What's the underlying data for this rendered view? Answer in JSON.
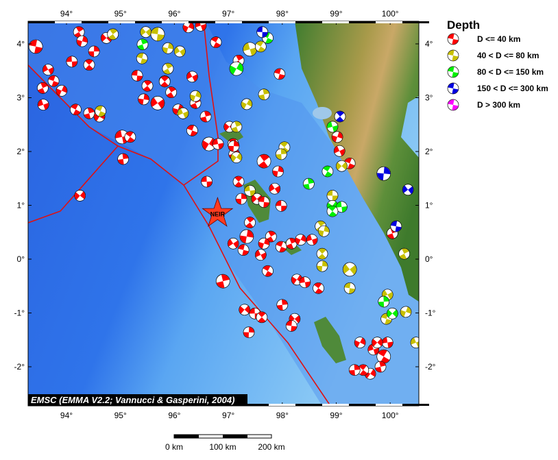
{
  "map": {
    "lon_ticks": [
      "94°",
      "95°",
      "96°",
      "97°",
      "98°",
      "99°",
      "100°"
    ],
    "lat_ticks": [
      "4°",
      "3°",
      "2°",
      "1°",
      "0°",
      "-1°",
      "-2°"
    ],
    "lon_values": [
      94,
      95,
      96,
      97,
      98,
      99,
      100
    ],
    "lat_values": [
      4,
      3,
      2,
      1,
      0,
      -1,
      -2
    ],
    "extent": {
      "lon": [
        93.3,
        100.5
      ],
      "lat": [
        -2.7,
        4.4
      ]
    },
    "credit": "EMSC (EMMA V2.2; Vannucci & Gasperini, 2004)",
    "epicenter": {
      "label": "NEIR",
      "lon": 96.8,
      "lat": 0.85,
      "color": "#ff3b1f"
    },
    "fault_color": "#e01010"
  },
  "legend": {
    "title": "Depth",
    "items": [
      {
        "label": "D <= 40 km",
        "color": "#ff0000"
      },
      {
        "label": "40 < D <= 80 km",
        "color": "#c8c000"
      },
      {
        "label": "80 < D <= 150 km",
        "color": "#00f000"
      },
      {
        "label": "150 < D <= 300 km",
        "color": "#0000e0"
      },
      {
        "label": "D > 300 km",
        "color": "#ff00ff"
      }
    ]
  },
  "scale_bar": {
    "labels": [
      "0 km",
      "100 km",
      "200 km"
    ]
  },
  "events": [
    [
      93.43,
      3.95,
      0
    ],
    [
      94.23,
      4.22,
      0
    ],
    [
      94.29,
      4.05,
      0
    ],
    [
      93.66,
      3.52,
      0
    ],
    [
      93.76,
      3.31,
      0
    ],
    [
      93.56,
      3.18,
      0
    ],
    [
      93.91,
      3.13,
      0
    ],
    [
      93.57,
      2.87,
      0
    ],
    [
      94.17,
      2.78,
      0
    ],
    [
      94.42,
      2.71,
      0
    ],
    [
      94.61,
      2.65,
      0
    ],
    [
      95.03,
      2.27,
      0
    ],
    [
      95.18,
      2.27,
      0
    ],
    [
      95.05,
      1.86,
      0
    ],
    [
      94.25,
      1.18,
      0
    ],
    [
      94.1,
      3.67,
      0
    ],
    [
      94.42,
      3.61,
      0
    ],
    [
      94.51,
      3.86,
      0
    ],
    [
      94.74,
      4.11,
      0
    ],
    [
      95.31,
      3.41,
      0
    ],
    [
      95.5,
      3.22,
      0
    ],
    [
      95.43,
      2.97,
      0
    ],
    [
      95.69,
      2.9,
      0
    ],
    [
      95.82,
      3.31,
      0
    ],
    [
      95.94,
      3.1,
      0
    ],
    [
      96.07,
      2.78,
      0
    ],
    [
      96.33,
      3.39,
      0
    ],
    [
      96.33,
      2.39,
      0
    ],
    [
      96.39,
      2.9,
      0
    ],
    [
      96.26,
      4.31,
      0
    ],
    [
      96.49,
      4.34,
      0
    ],
    [
      96.77,
      4.03,
      0
    ],
    [
      96.58,
      2.65,
      0
    ],
    [
      96.64,
      2.14,
      0
    ],
    [
      96.81,
      2.14,
      0
    ],
    [
      97.09,
      2.14,
      0
    ],
    [
      97.11,
      1.95,
      0
    ],
    [
      97.02,
      2.46,
      0
    ],
    [
      96.6,
      1.44,
      0
    ],
    [
      97.19,
      1.44,
      0
    ],
    [
      97.24,
      1.12,
      0
    ],
    [
      97.53,
      1.12,
      0
    ],
    [
      97.66,
      1.06,
      0
    ],
    [
      97.4,
      0.68,
      0
    ],
    [
      97.34,
      0.42,
      0
    ],
    [
      97.09,
      0.29,
      0
    ],
    [
      97.28,
      0.17,
      0
    ],
    [
      97.79,
      0.42,
      0
    ],
    [
      97.66,
      0.29,
      0
    ],
    [
      97.6,
      0.08,
      0
    ],
    [
      97.98,
      0.23,
      0
    ],
    [
      98.17,
      0.29,
      0
    ],
    [
      98.34,
      0.36,
      0
    ],
    [
      98.55,
      0.36,
      0
    ],
    [
      97.73,
      -0.22,
      0
    ],
    [
      96.9,
      -0.41,
      0
    ],
    [
      98.27,
      -0.38,
      0
    ],
    [
      98.42,
      -0.43,
      0
    ],
    [
      98.67,
      -0.54,
      0
    ],
    [
      98.0,
      -0.85,
      0
    ],
    [
      97.3,
      -0.94,
      0
    ],
    [
      97.49,
      -1.01,
      0
    ],
    [
      97.62,
      -1.08,
      0
    ],
    [
      97.38,
      -1.36,
      0
    ],
    [
      98.23,
      -1.11,
      0
    ],
    [
      98.17,
      -1.24,
      0
    ],
    [
      97.66,
      1.82,
      0
    ],
    [
      97.92,
      1.63,
      0
    ],
    [
      97.86,
      1.31,
      0
    ],
    [
      97.95,
      3.44,
      0
    ],
    [
      97.19,
      3.69,
      0
    ],
    [
      99.02,
      2.27,
      0
    ],
    [
      99.06,
      2.01,
      0
    ],
    [
      99.25,
      1.78,
      0
    ],
    [
      100.04,
      0.48,
      0
    ],
    [
      99.44,
      -1.55,
      0
    ],
    [
      99.69,
      -1.68,
      0
    ],
    [
      99.88,
      -1.81,
      0
    ],
    [
      99.82,
      -2.0,
      0
    ],
    [
      99.63,
      -2.13,
      0
    ],
    [
      99.95,
      -1.55,
      0
    ],
    [
      99.5,
      -2.06,
      0
    ],
    [
      99.34,
      -2.06,
      0
    ],
    [
      99.76,
      -1.55,
      0
    ],
    [
      97.98,
      0.99,
      0
    ],
    [
      95.82,
      3.3,
      0
    ],
    [
      97.1,
      2.1,
      0
    ],
    [
      95.47,
      4.22,
      1
    ],
    [
      95.69,
      4.18,
      1
    ],
    [
      94.86,
      4.18,
      1
    ],
    [
      95.88,
      3.92,
      1
    ],
    [
      96.1,
      3.86,
      1
    ],
    [
      95.4,
      3.73,
      1
    ],
    [
      95.88,
      3.54,
      1
    ],
    [
      96.39,
      3.03,
      1
    ],
    [
      96.16,
      2.71,
      1
    ],
    [
      94.63,
      2.75,
      1
    ],
    [
      97.15,
      2.46,
      1
    ],
    [
      97.34,
      2.88,
      1
    ],
    [
      97.4,
      3.9,
      1
    ],
    [
      97.6,
      3.95,
      1
    ],
    [
      97.66,
      3.06,
      1
    ],
    [
      97.15,
      1.89,
      1
    ],
    [
      97.4,
      1.27,
      1
    ],
    [
      98.04,
      2.08,
      1
    ],
    [
      97.98,
      1.95,
      1
    ],
    [
      99.1,
      1.73,
      1
    ],
    [
      98.93,
      1.18,
      1
    ],
    [
      98.74,
      0.1,
      1
    ],
    [
      98.74,
      -0.13,
      1
    ],
    [
      99.25,
      -0.19,
      1
    ],
    [
      99.25,
      -0.54,
      1
    ],
    [
      98.71,
      0.61,
      1
    ],
    [
      98.77,
      0.52,
      1
    ],
    [
      99.95,
      -0.66,
      1
    ],
    [
      99.93,
      -1.11,
      1
    ],
    [
      100.26,
      0.1,
      1
    ],
    [
      100.29,
      -0.98,
      1
    ],
    [
      100.48,
      -1.55,
      1
    ],
    [
      97.73,
      4.11,
      2
    ],
    [
      95.41,
      3.99,
      2
    ],
    [
      97.15,
      3.54,
      2
    ],
    [
      98.93,
      2.46,
      2
    ],
    [
      98.84,
      1.63,
      2
    ],
    [
      98.49,
      1.4,
      2
    ],
    [
      98.93,
      0.99,
      2
    ],
    [
      99.1,
      0.97,
      2
    ],
    [
      98.93,
      0.89,
      2
    ],
    [
      99.88,
      -0.79,
      2
    ],
    [
      100.04,
      -1.01,
      2
    ],
    [
      97.63,
      4.22,
      3
    ],
    [
      99.07,
      2.65,
      3
    ],
    [
      99.88,
      1.59,
      3
    ],
    [
      100.33,
      1.29,
      3
    ],
    [
      100.11,
      0.61,
      3
    ]
  ]
}
